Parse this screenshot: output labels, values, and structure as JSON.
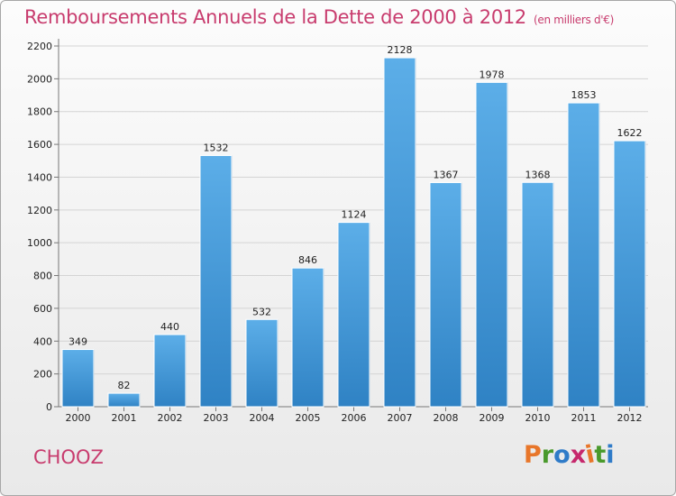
{
  "header": {
    "title": "Remboursements Annuels de la Dette de 2000 à 2012",
    "unit": "(en milliers d'€)"
  },
  "footer": {
    "commune": "CHOOZ",
    "logo": "Proxiti",
    "logo_colors": [
      "#e8762a",
      "#4a9a2c",
      "#2f7bc8",
      "#c6286c",
      "#e8762a",
      "#4a9a2c",
      "#2f7bc8"
    ]
  },
  "colors": {
    "bar_light": "#5caee8",
    "bar_dark": "#2f82c4",
    "title": "#c83c6e"
  },
  "chart_data": {
    "type": "bar",
    "categories": [
      "2000",
      "2001",
      "2002",
      "2003",
      "2004",
      "2005",
      "2006",
      "2007",
      "2008",
      "2009",
      "2010",
      "2011",
      "2012"
    ],
    "values": [
      349,
      82,
      440,
      1532,
      532,
      846,
      1124,
      2128,
      1367,
      1978,
      1368,
      1853,
      1622
    ],
    "ylim": [
      0,
      2200
    ],
    "yticks": [
      0,
      200,
      400,
      600,
      800,
      1000,
      1200,
      1400,
      1600,
      1800,
      2000,
      2200
    ],
    "grid": true,
    "legend": "none"
  }
}
